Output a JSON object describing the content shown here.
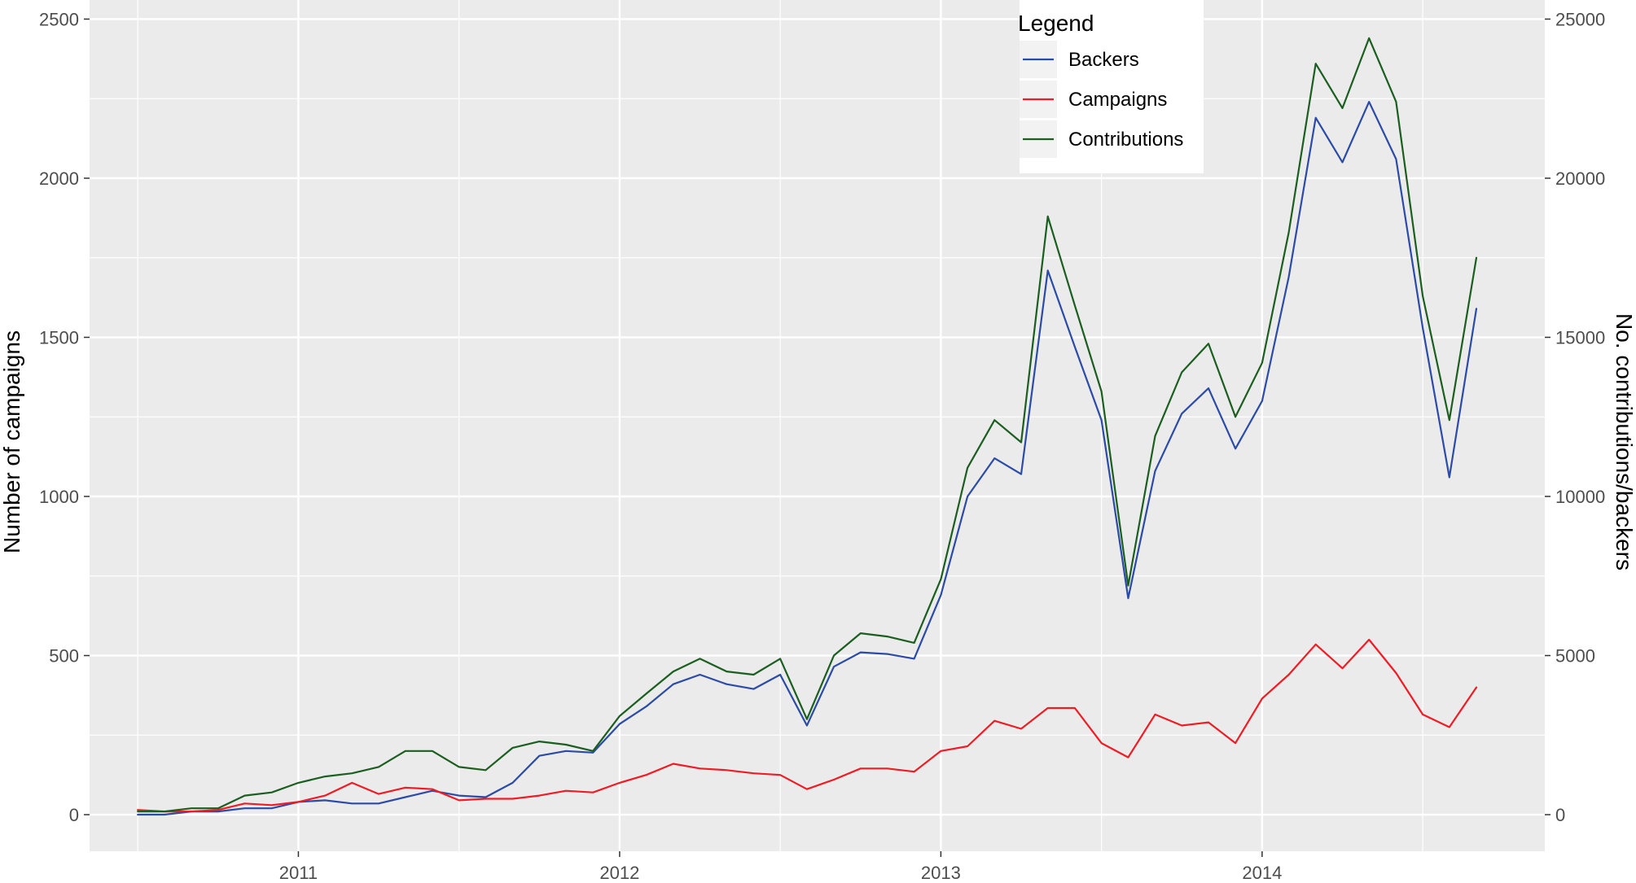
{
  "chart_data": {
    "type": "line",
    "ylabel": "Number of campaigns",
    "y2label": "No. contributions/backers",
    "xlim": [
      2010.35,
      2014.88
    ],
    "ylim": [
      -115,
      2560
    ],
    "y2lim": [
      -1150,
      25600
    ],
    "x_ticks": [
      {
        "label": "2011",
        "value": 2011
      },
      {
        "label": "2012",
        "value": 2012
      },
      {
        "label": "2013",
        "value": 2013
      },
      {
        "label": "2014",
        "value": 2014
      }
    ],
    "y_ticks": [
      {
        "label": "0",
        "value": 0
      },
      {
        "label": "500",
        "value": 500
      },
      {
        "label": "1000",
        "value": 1000
      },
      {
        "label": "1500",
        "value": 1500
      },
      {
        "label": "2000",
        "value": 2000
      },
      {
        "label": "2500",
        "value": 2500
      }
    ],
    "y2_ticks": [
      {
        "label": "0",
        "value": 0
      },
      {
        "label": "5000",
        "value": 5000
      },
      {
        "label": "10000",
        "value": 10000
      },
      {
        "label": "15000",
        "value": 15000
      },
      {
        "label": "20000",
        "value": 20000
      },
      {
        "label": "25000",
        "value": 25000
      }
    ],
    "grid": true,
    "x": [
      2010.5,
      2010.583,
      2010.667,
      2010.75,
      2010.833,
      2010.917,
      2011.0,
      2011.083,
      2011.167,
      2011.25,
      2011.333,
      2011.417,
      2011.5,
      2011.583,
      2011.667,
      2011.75,
      2011.833,
      2011.917,
      2012.0,
      2012.083,
      2012.167,
      2012.25,
      2012.333,
      2012.417,
      2012.5,
      2012.583,
      2012.667,
      2012.75,
      2012.833,
      2012.917,
      2013.0,
      2013.083,
      2013.167,
      2013.25,
      2013.333,
      2013.417,
      2013.5,
      2013.583,
      2013.667,
      2013.75,
      2013.833,
      2013.917,
      2014.0,
      2014.083,
      2014.167,
      2014.25,
      2014.333,
      2014.417,
      2014.5,
      2014.583,
      2014.667
    ],
    "series": [
      {
        "name": "Backers",
        "axis": "right",
        "color": "#2b4ba6",
        "values": [
          0,
          0,
          100,
          100,
          200,
          200,
          400,
          450,
          350,
          350,
          550,
          750,
          600,
          550,
          1000,
          1850,
          2000,
          1950,
          2850,
          3400,
          4100,
          4400,
          4100,
          3950,
          4400,
          2800,
          4650,
          5100,
          5050,
          4900,
          6900,
          10000,
          11200,
          10700,
          17100,
          14700,
          12400,
          6800,
          10800,
          12600,
          13400,
          11500,
          13000,
          16900,
          21900,
          20500,
          22400,
          20600,
          15300,
          10600,
          15900
        ]
      },
      {
        "name": "Campaigns",
        "axis": "left",
        "color": "#ee1c25",
        "values": [
          15,
          10,
          10,
          15,
          35,
          30,
          40,
          60,
          100,
          65,
          85,
          80,
          45,
          50,
          50,
          60,
          75,
          70,
          100,
          125,
          160,
          145,
          140,
          130,
          125,
          80,
          110,
          145,
          145,
          135,
          200,
          215,
          295,
          270,
          335,
          335,
          225,
          180,
          315,
          280,
          290,
          225,
          365,
          440,
          535,
          460,
          550,
          445,
          315,
          275,
          400
        ]
      },
      {
        "name": "Contributions",
        "axis": "right",
        "color": "#1b5e20",
        "values": [
          100,
          100,
          200,
          200,
          600,
          700,
          1000,
          1200,
          1300,
          1500,
          2000,
          2000,
          1500,
          1400,
          2100,
          2300,
          2200,
          2000,
          3100,
          3800,
          4500,
          4900,
          4500,
          4400,
          4900,
          3000,
          5000,
          5700,
          5600,
          5400,
          7400,
          10900,
          12400,
          11700,
          18800,
          16000,
          13300,
          7200,
          11900,
          13900,
          14800,
          12500,
          14200,
          18300,
          23600,
          22200,
          24400,
          22400,
          16300,
          12400,
          17500
        ]
      }
    ],
    "legend": {
      "title": "Legend",
      "position": "top-center",
      "items": [
        "Backers",
        "Campaigns",
        "Contributions"
      ]
    }
  }
}
